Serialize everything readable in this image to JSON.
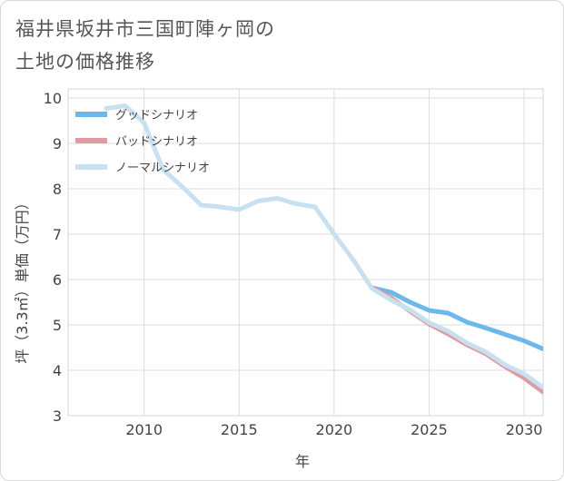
{
  "title_lines": [
    "福井県坂井市三国町陣ヶ岡の",
    "土地の価格推移"
  ],
  "chart_data": {
    "type": "line",
    "title": "福井県坂井市三国町陣ヶ岡の土地の価格推移",
    "xlabel": "年",
    "ylabel": "坪（3.3㎡）単価（万円）",
    "xlim": [
      2006,
      2031
    ],
    "ylim": [
      3,
      10.2
    ],
    "xticks": [
      2010,
      2015,
      2020,
      2025,
      2030
    ],
    "yticks": [
      3,
      4,
      5,
      6,
      7,
      8,
      9,
      10
    ],
    "grid": true,
    "legend_position": "top-left",
    "series": [
      {
        "name": "グッドシナリオ",
        "color": "#6bb8ec",
        "x": [
          2022,
          2023,
          2024,
          2025,
          2026,
          2027,
          2028,
          2029,
          2030,
          2031
        ],
        "y": [
          5.82,
          5.72,
          5.5,
          5.32,
          5.26,
          5.06,
          4.93,
          4.79,
          4.65,
          4.47
        ]
      },
      {
        "name": "バッドシナリオ",
        "color": "#e09aa2",
        "x": [
          2022,
          2023,
          2024,
          2025,
          2026,
          2027,
          2028,
          2029,
          2030,
          2031
        ],
        "y": [
          5.82,
          5.6,
          5.3,
          5.02,
          4.8,
          4.56,
          4.36,
          4.08,
          3.83,
          3.52
        ]
      },
      {
        "name": "ノーマルシナリオ",
        "color": "#c7e1f0",
        "x": [
          2008,
          2009,
          2010,
          2011,
          2012,
          2013,
          2014,
          2015,
          2016,
          2017,
          2018,
          2019,
          2020,
          2021,
          2022,
          2023,
          2024,
          2025,
          2026,
          2027,
          2028,
          2029,
          2030,
          2031
        ],
        "y": [
          9.77,
          9.83,
          9.45,
          8.42,
          8.05,
          7.64,
          7.6,
          7.54,
          7.73,
          7.79,
          7.67,
          7.6,
          7.0,
          6.44,
          5.8,
          5.55,
          5.33,
          5.05,
          4.86,
          4.6,
          4.4,
          4.12,
          3.92,
          3.62
        ]
      }
    ]
  }
}
